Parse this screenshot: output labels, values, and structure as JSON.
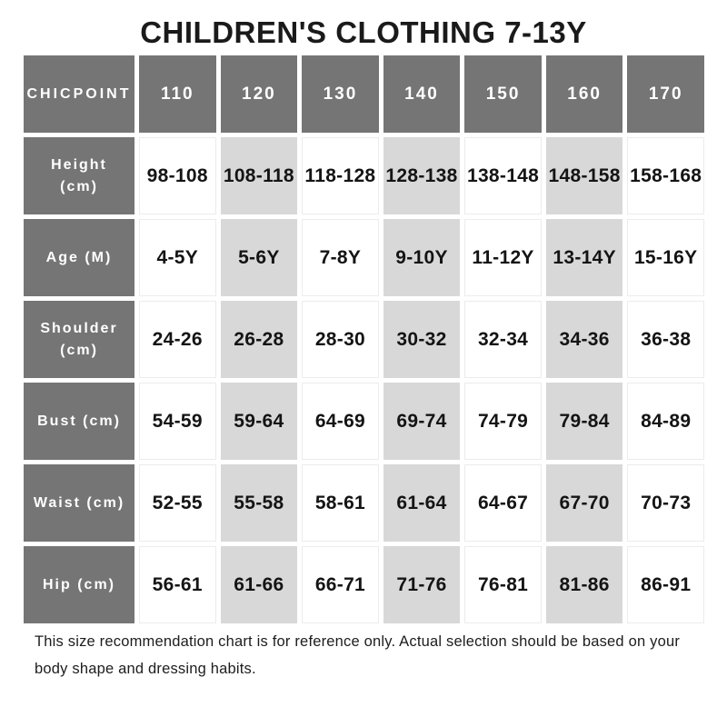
{
  "title": "CHILDREN'S CLOTHING 7-13Y",
  "colors": {
    "header_bg": "#757575",
    "header_text": "#ffffff",
    "stripe_bg": "#d8d8d8",
    "cell_border": "#ececec",
    "text": "#141414"
  },
  "chart_data": {
    "type": "table",
    "title": "CHILDREN'S CLOTHING 7-13Y",
    "corner_label": "CHICPOINT",
    "columns": [
      "110",
      "120",
      "130",
      "140",
      "150",
      "160",
      "170"
    ],
    "striped_column_indexes": [
      1,
      3,
      5
    ],
    "rows": [
      {
        "label": "Height (cm)",
        "values": [
          "98-108",
          "108-118",
          "118-128",
          "128-138",
          "138-148",
          "148-158",
          "158-168"
        ]
      },
      {
        "label": "Age (M)",
        "values": [
          "4-5Y",
          "5-6Y",
          "7-8Y",
          "9-10Y",
          "11-12Y",
          "13-14Y",
          "15-16Y"
        ]
      },
      {
        "label": "Shoulder (cm)",
        "values": [
          "24-26",
          "26-28",
          "28-30",
          "30-32",
          "32-34",
          "34-36",
          "36-38"
        ]
      },
      {
        "label": "Bust (cm)",
        "values": [
          "54-59",
          "59-64",
          "64-69",
          "69-74",
          "74-79",
          "79-84",
          "84-89"
        ]
      },
      {
        "label": "Waist (cm)",
        "values": [
          "52-55",
          "55-58",
          "58-61",
          "61-64",
          "64-67",
          "67-70",
          "70-73"
        ]
      },
      {
        "label": "Hip (cm)",
        "values": [
          "56-61",
          "61-66",
          "66-71",
          "71-76",
          "76-81",
          "81-86",
          "86-91"
        ]
      }
    ]
  },
  "footer": {
    "note": "This size recommendation chart is for reference only. Actual selection should be based on your body shape and dressing habits."
  }
}
